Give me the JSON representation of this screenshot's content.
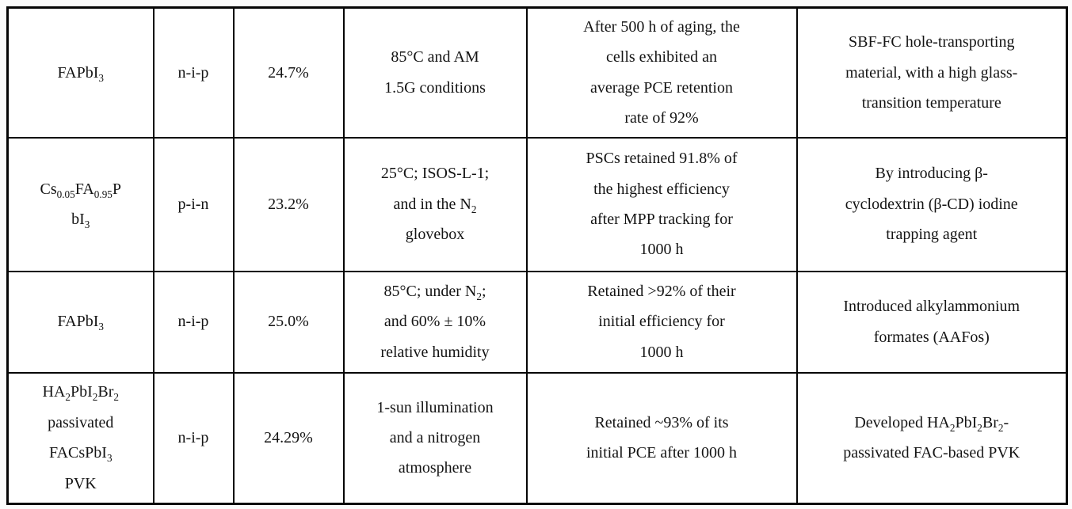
{
  "page": {
    "background_color": "#ffffff",
    "grid_color": "#000000",
    "text_color": "#141414"
  },
  "table": {
    "rows": [
      {
        "cells": [
          "FAPbI₃",
          "n-i-p",
          "24.7%",
          "85°C and AM\n1.5G conditions",
          "After 500 h of aging, the\ncells exhibited an\naverage PCE retention\nrate of 92%",
          "SBF-FC hole-transporting\nmaterial, with a high glass-\ntransition temperature"
        ]
      },
      {
        "cells": [
          "Cs₀.₀₅FA₀.₉₅P\nbI₃",
          "p-i-n",
          "23.2%",
          "25°C; ISOS-L-1;\nand in the N₂\nglovebox",
          "PSCs retained 91.8% of\nthe highest efficiency\nafter MPP tracking for\n1000 h",
          "By introducing β-\ncyclodextrin (β-CD) iodine\ntrapping agent"
        ]
      },
      {
        "cells": [
          "FAPbI₃",
          "n-i-p",
          "25.0%",
          "85°C; under N₂;\nand 60% ± 10%\nrelative humidity",
          "Retained >92% of their\ninitial efficiency for\n1000 h",
          "Introduced alkylammonium\nformates (AAFos)"
        ]
      },
      {
        "cells": [
          "HA₂PbI₂Br₂\npassivated\nFACsPbI₃\nPVK",
          "n-i-p",
          "24.29%",
          "1-sun illumination\nand a nitrogen\natmosphere",
          "Retained ~93% of its\ninitial PCE after 1000 h",
          "Developed HA₂PbI₂Br₂-\npassivated FAC-based PVK"
        ]
      }
    ]
  }
}
